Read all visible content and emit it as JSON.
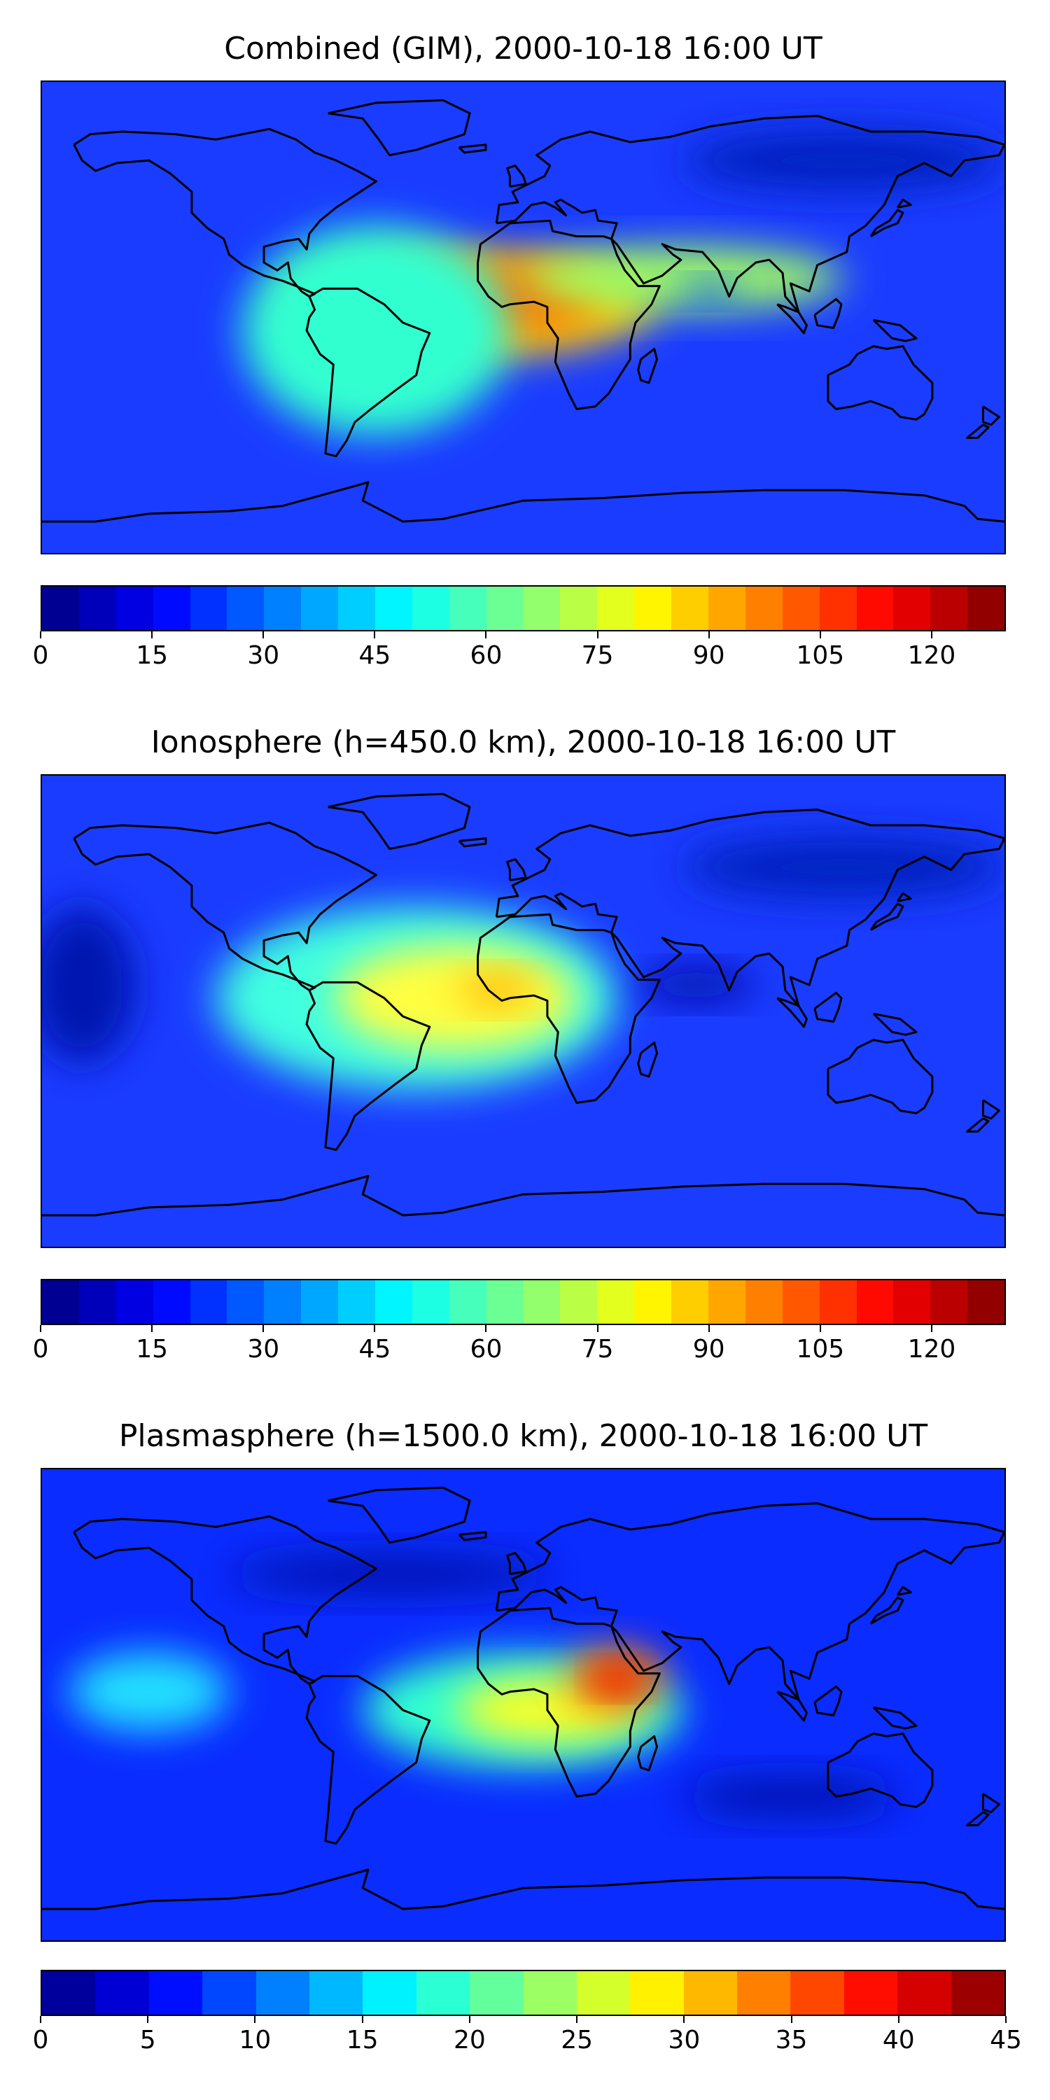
{
  "panels": [
    {
      "title": "Combined (GIM), 2000-10-18 16:00 UT",
      "colorbar_ticks": [
        "0",
        "15",
        "30",
        "45",
        "60",
        "75",
        "90",
        "105",
        "120"
      ],
      "colorbar_min": 0,
      "colorbar_max": 130,
      "colorbar_levels": 26,
      "background": "#1a3cff",
      "blobs": [
        {
          "lon": -20,
          "lat": 5,
          "rx": 70,
          "ry": 20,
          "color": "#ffd000"
        },
        {
          "lon": -15,
          "lat": 7,
          "rx": 45,
          "ry": 13,
          "color": "#ff6a00"
        },
        {
          "lon": 60,
          "lat": 15,
          "rx": 60,
          "ry": 12,
          "color": "#a0ff60"
        },
        {
          "lon": 70,
          "lat": 10,
          "rx": 12,
          "ry": 4,
          "color": "#1050ff"
        },
        {
          "lon": -55,
          "lat": -5,
          "rx": 50,
          "ry": 40,
          "color": "#30ffd0"
        },
        {
          "lon": 120,
          "lat": 60,
          "rx": 60,
          "ry": 12,
          "color": "#0020c0"
        }
      ]
    },
    {
      "title": "Ionosphere  (h=450.0 km), 2000-10-18 16:00 UT",
      "colorbar_ticks": [
        "0",
        "15",
        "30",
        "45",
        "60",
        "75",
        "90",
        "105",
        "120"
      ],
      "colorbar_min": 0,
      "colorbar_max": 130,
      "colorbar_levels": 26,
      "background": "#1a3cff",
      "blobs": [
        {
          "lon": -40,
          "lat": 5,
          "rx": 75,
          "ry": 35,
          "color": "#40ffe0"
        },
        {
          "lon": -25,
          "lat": 5,
          "rx": 45,
          "ry": 20,
          "color": "#ffff40"
        },
        {
          "lon": -10,
          "lat": 8,
          "rx": 15,
          "ry": 6,
          "color": "#ffb000"
        },
        {
          "lon": 65,
          "lat": 10,
          "rx": 22,
          "ry": 6,
          "color": "#0010a0"
        },
        {
          "lon": -165,
          "lat": 10,
          "rx": 20,
          "ry": 30,
          "color": "#0018b0"
        },
        {
          "lon": 120,
          "lat": 55,
          "rx": 60,
          "ry": 12,
          "color": "#0020c0"
        }
      ]
    },
    {
      "title": "Plasmasphere (h=1500.0 km), 2000-10-18 16:00 UT",
      "colorbar_ticks": [
        "0",
        "5",
        "10",
        "15",
        "20",
        "25",
        "30",
        "35",
        "40",
        "45"
      ],
      "colorbar_min": 0,
      "colorbar_max": 45,
      "colorbar_levels": 18,
      "background": "#0a2cff",
      "blobs": [
        {
          "lon": -140,
          "lat": 5,
          "rx": 30,
          "ry": 15,
          "color": "#20e0ff"
        },
        {
          "lon": 0,
          "lat": -2,
          "rx": 60,
          "ry": 22,
          "color": "#30ffd0"
        },
        {
          "lon": 10,
          "lat": -2,
          "rx": 35,
          "ry": 12,
          "color": "#ffff20"
        },
        {
          "lon": 35,
          "lat": 10,
          "rx": 18,
          "ry": 12,
          "color": "#ff6000"
        },
        {
          "lon": 35,
          "lat": 10,
          "rx": 8,
          "ry": 5,
          "color": "#e00000"
        },
        {
          "lon": -50,
          "lat": 50,
          "rx": 60,
          "ry": 8,
          "color": "#0018b0"
        },
        {
          "lon": 100,
          "lat": -35,
          "rx": 40,
          "ry": 8,
          "color": "#0018b0"
        }
      ]
    }
  ]
}
